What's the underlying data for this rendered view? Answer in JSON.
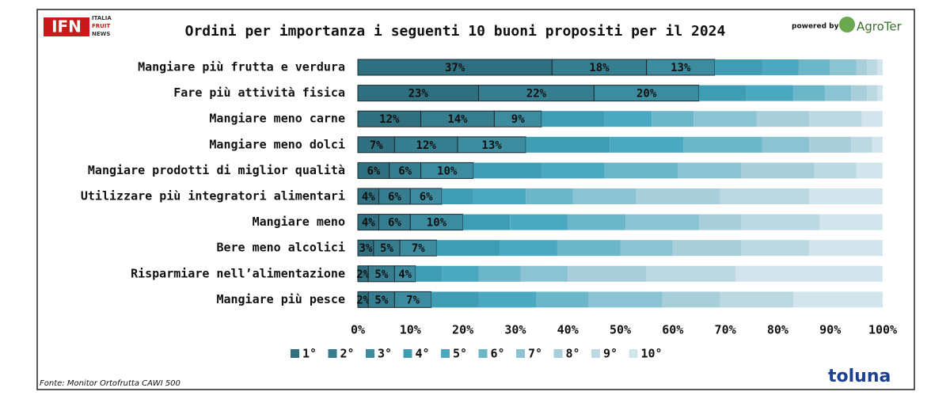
{
  "header": {
    "logo": "IFN",
    "logo_sub": [
      "ITALIA",
      "FRUIT",
      "NEWS"
    ],
    "powered_by": "powered by",
    "sponsor": "AgroTer",
    "brand": "toluna"
  },
  "source": "Fonte: Monitor Ortofrutta CAWI 500",
  "chart_data": {
    "type": "stacked-barh",
    "title": "Ordini per importanza i seguenti 10 buoni propositi per il 2024",
    "categories": [
      "Mangiare più frutta e verdura",
      "Fare più attività fisica",
      "Mangiare meno carne",
      "Mangiare meno dolci",
      "Mangiare prodotti di miglior qualità",
      "Utilizzare più integratori alimentari",
      "Mangiare meno",
      "Bere meno alcolici",
      "Risparmiare nell’alimentazione",
      "Mangiare più pesce"
    ],
    "series": [
      {
        "name": "1°",
        "color": "#2f6f80",
        "values": [
          37,
          23,
          12,
          7,
          6,
          4,
          4,
          3,
          2,
          2
        ],
        "value_labels": [
          "37%",
          "23%",
          "12%",
          "7%",
          "6%",
          "4%",
          "4%",
          "3%",
          "2%",
          "2%"
        ]
      },
      {
        "name": "2°",
        "color": "#367d90",
        "values": [
          18,
          22,
          14,
          12,
          6,
          6,
          6,
          5,
          5,
          5
        ],
        "value_labels": [
          "18%",
          "22%",
          "14%",
          "12%",
          "6%",
          "6%",
          "6%",
          "5%",
          "5%",
          "5%"
        ]
      },
      {
        "name": "3°",
        "color": "#3c8b9f",
        "values": [
          13,
          20,
          9,
          13,
          10,
          6,
          10,
          7,
          4,
          7
        ],
        "value_labels": [
          "13%",
          "20%",
          "9%",
          "13%",
          "10%",
          "6%",
          "10%",
          "7%",
          "4%",
          "7%"
        ]
      },
      {
        "name": "4°",
        "color": "#3e9cb3",
        "values": [
          9,
          9,
          12,
          16,
          13,
          6,
          9,
          12,
          5,
          9
        ]
      },
      {
        "name": "5°",
        "color": "#4aa8c1",
        "values": [
          7,
          9,
          9,
          14,
          12,
          10,
          11,
          11,
          7,
          11
        ]
      },
      {
        "name": "6°",
        "color": "#6bb6c9",
        "values": [
          6,
          6,
          8,
          15,
          14,
          9,
          11,
          12,
          8,
          10
        ]
      },
      {
        "name": "7°",
        "color": "#8cc3d2",
        "values": [
          5,
          5,
          12,
          9,
          12,
          12,
          14,
          10,
          9,
          14
        ]
      },
      {
        "name": "8°",
        "color": "#a7ced9",
        "values": [
          2,
          3,
          10,
          8,
          14,
          16,
          8,
          13,
          15,
          11
        ]
      },
      {
        "name": "9°",
        "color": "#bcd9e2",
        "values": [
          2,
          2,
          10,
          4,
          8,
          17,
          15,
          13,
          17,
          14
        ]
      },
      {
        "name": "10°",
        "color": "#d3e5ec",
        "values": [
          1,
          1,
          4,
          2,
          5,
          14,
          12,
          14,
          28,
          17
        ]
      }
    ],
    "xlim": [
      0,
      100
    ],
    "xticks": [
      {
        "value": 0,
        "label": "0%"
      },
      {
        "value": 10,
        "label": "10%"
      },
      {
        "value": 20,
        "label": "20%"
      },
      {
        "value": 30,
        "label": "30%"
      },
      {
        "value": 40,
        "label": "40%"
      },
      {
        "value": 50,
        "label": "50%"
      },
      {
        "value": 60,
        "label": "60%"
      },
      {
        "value": 70,
        "label": "70%"
      },
      {
        "value": 80,
        "label": "80%"
      },
      {
        "value": 90,
        "label": "90%"
      },
      {
        "value": 100,
        "label": "100%"
      }
    ]
  }
}
